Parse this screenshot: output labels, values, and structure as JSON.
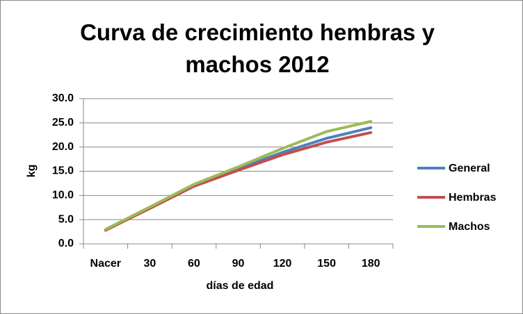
{
  "chart_data": {
    "type": "line",
    "title": "Curva de crecimiento hembras y machos 2012",
    "x_label": "días de edad",
    "y_label": "kg",
    "categories": [
      "Nacer",
      "30",
      "60",
      "90",
      "120",
      "150",
      "180"
    ],
    "series": [
      {
        "name": "General",
        "color": "#4f81bd",
        "values": [
          2.9,
          7.5,
          12.2,
          15.5,
          18.9,
          21.8,
          24.0
        ]
      },
      {
        "name": "Hembras",
        "color": "#c0504d",
        "values": [
          2.8,
          7.3,
          11.9,
          15.2,
          18.4,
          21.0,
          23.0
        ]
      },
      {
        "name": "Machos",
        "color": "#9bbb59",
        "values": [
          3.0,
          7.6,
          12.3,
          15.9,
          19.7,
          23.2,
          25.3
        ]
      }
    ],
    "ylim": [
      0,
      30
    ],
    "yticks": [
      {
        "value": 0,
        "label": "0.0"
      },
      {
        "value": 5,
        "label": "5.0"
      },
      {
        "value": 10,
        "label": "10.0"
      },
      {
        "value": 15,
        "label": "15.0"
      },
      {
        "value": 20,
        "label": "20.0"
      },
      {
        "value": 25,
        "label": "25.0"
      },
      {
        "value": 30,
        "label": "30.0"
      }
    ],
    "grid": true,
    "legend": "right"
  }
}
